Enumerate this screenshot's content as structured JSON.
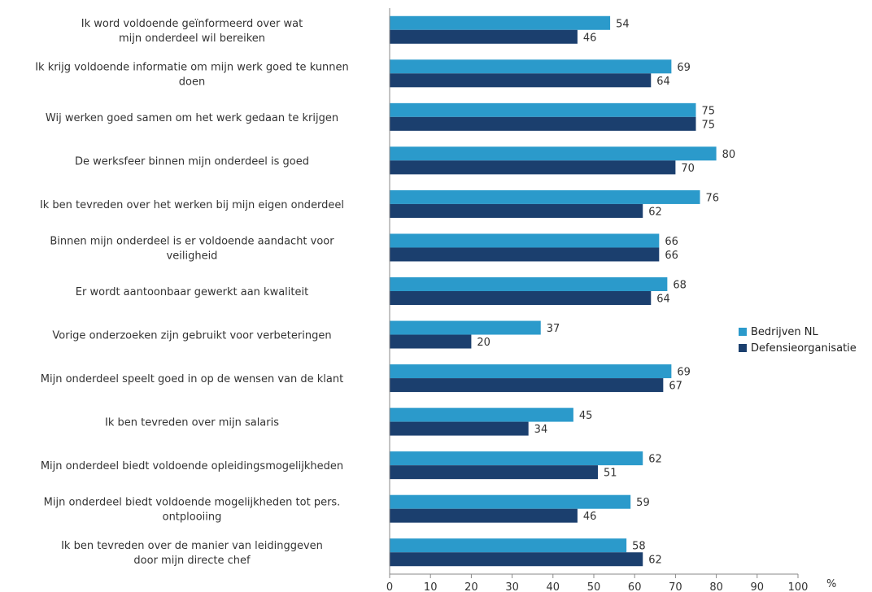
{
  "chart_data": {
    "type": "bar",
    "orientation": "horizontal",
    "categories": [
      [
        "Ik word voldoende geïnformeerd over wat",
        "mijn onderdeel wil bereiken"
      ],
      [
        "Ik krijg voldoende informatie om mijn werk goed te kunnen",
        "doen"
      ],
      [
        "Wij werken goed samen om het werk gedaan te krijgen"
      ],
      [
        "De werksfeer binnen mijn onderdeel is goed"
      ],
      [
        "Ik ben tevreden over het werken bij mijn eigen onderdeel"
      ],
      [
        "Binnen mijn onderdeel is er voldoende aandacht voor",
        "veiligheid"
      ],
      [
        "Er wordt aantoonbaar gewerkt aan kwaliteit"
      ],
      [
        "Vorige onderzoeken zijn gebruikt voor verbeteringen"
      ],
      [
        "Mijn onderdeel speelt goed in op de wensen van de klant"
      ],
      [
        "Ik ben tevreden over mijn salaris"
      ],
      [
        "Mijn onderdeel biedt voldoende opleidingsmogelijkheden"
      ],
      [
        "Mijn onderdeel biedt voldoende mogelijkheden tot pers.",
        "ontplooiing"
      ],
      [
        "Ik ben tevreden over de manier van leidinggeven",
        "door mijn directe chef"
      ]
    ],
    "series": [
      {
        "name": "Bedrijven NL",
        "color": "#2b9acb",
        "values": [
          54,
          69,
          75,
          80,
          76,
          66,
          68,
          37,
          69,
          45,
          62,
          59,
          58
        ]
      },
      {
        "name": "Defensieorganisatie",
        "color": "#1b3f6e",
        "values": [
          46,
          64,
          75,
          70,
          62,
          66,
          64,
          20,
          67,
          34,
          51,
          46,
          62
        ]
      }
    ],
    "xlim": [
      0,
      100
    ],
    "xticks": [
      0,
      10,
      20,
      30,
      40,
      50,
      60,
      70,
      80,
      90,
      100
    ],
    "unit": "%",
    "grid": false,
    "legend_position": "right"
  }
}
